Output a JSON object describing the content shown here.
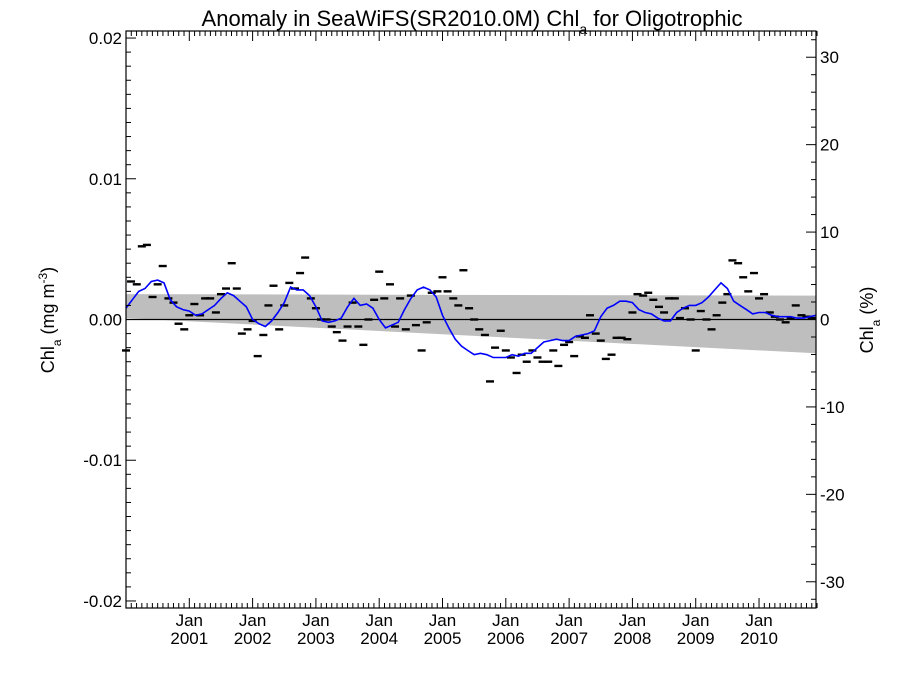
{
  "chart_data": {
    "type": "line",
    "title": "Anomaly in SeaWiFS(SR2010.0M) Chl",
    "title_subscript": "a",
    "title_suffix": " for Oligotrophic",
    "ylabel_left": {
      "pre": "Chl",
      "sub": "a",
      "mid": " (mg m",
      "sup": "-3",
      "post": ")"
    },
    "ylabel_right": {
      "pre": "Chl",
      "sub": "a",
      "post": " (%)"
    },
    "ylim": [
      -0.0205,
      0.0205
    ],
    "ylim_right": [
      -33.0,
      33.0
    ],
    "xlim": [
      2000.0,
      2010.9
    ],
    "left_ticks": [
      {
        "v": 0.02,
        "label": "0.02"
      },
      {
        "v": 0.01,
        "label": "0.01"
      },
      {
        "v": 0.0,
        "label": "0.00"
      },
      {
        "v": -0.01,
        "label": "-0.01"
      },
      {
        "v": -0.02,
        "label": "-0.02"
      }
    ],
    "right_ticks": [
      {
        "v": 30,
        "label": "30"
      },
      {
        "v": 20,
        "label": "20"
      },
      {
        "v": 10,
        "label": "10"
      },
      {
        "v": 0,
        "label": "0"
      },
      {
        "v": -10,
        "label": "-10"
      },
      {
        "v": -20,
        "label": "-20"
      },
      {
        "v": -30,
        "label": "-30"
      }
    ],
    "x_tick_labels": [
      {
        "t": 2001.0,
        "month": "Jan",
        "year": "2001"
      },
      {
        "t": 2002.0,
        "month": "Jan",
        "year": "2002"
      },
      {
        "t": 2003.0,
        "month": "Jan",
        "year": "2003"
      },
      {
        "t": 2004.0,
        "month": "Jan",
        "year": "2004"
      },
      {
        "t": 2005.0,
        "month": "Jan",
        "year": "2005"
      },
      {
        "t": 2006.0,
        "month": "Jan",
        "year": "2006"
      },
      {
        "t": 2007.0,
        "month": "Jan",
        "year": "2007"
      },
      {
        "t": 2008.0,
        "month": "Jan",
        "year": "2008"
      },
      {
        "t": 2009.0,
        "month": "Jan",
        "year": "2009"
      },
      {
        "t": 2010.0,
        "month": "Jan",
        "year": "2010"
      }
    ],
    "band": {
      "x": [
        2000.0,
        2010.9
      ],
      "upper": [
        0.0018,
        0.0017
      ],
      "lower": [
        0.0001,
        -0.0024
      ]
    },
    "zero_line": 0,
    "colors": {
      "band": "#bebebe",
      "smooth": "#0000ff",
      "points": "#000000",
      "axes": "#000000"
    },
    "series": [
      {
        "kind": "monthly_points",
        "x": [
          2000.0,
          2000.08,
          2000.17,
          2000.25,
          2000.33,
          2000.42,
          2000.5,
          2000.58,
          2000.67,
          2000.75,
          2000.83,
          2000.92,
          2001.0,
          2001.08,
          2001.17,
          2001.25,
          2001.33,
          2001.42,
          2001.5,
          2001.58,
          2001.67,
          2001.75,
          2001.83,
          2001.92,
          2002.0,
          2002.08,
          2002.17,
          2002.25,
          2002.33,
          2002.42,
          2002.5,
          2002.58,
          2002.67,
          2002.75,
          2002.83,
          2002.92,
          2003.0,
          2003.08,
          2003.17,
          2003.25,
          2003.33,
          2003.42,
          2003.5,
          2003.58,
          2003.67,
          2003.75,
          2003.83,
          2003.92,
          2004.0,
          2004.08,
          2004.17,
          2004.25,
          2004.33,
          2004.42,
          2004.5,
          2004.58,
          2004.67,
          2004.75,
          2004.83,
          2004.92,
          2005.0,
          2005.08,
          2005.17,
          2005.25,
          2005.33,
          2005.42,
          2005.5,
          2005.58,
          2005.67,
          2005.75,
          2005.83,
          2005.92,
          2006.0,
          2006.08,
          2006.17,
          2006.25,
          2006.33,
          2006.42,
          2006.5,
          2006.58,
          2006.67,
          2006.75,
          2006.83,
          2006.92,
          2007.0,
          2007.08,
          2007.17,
          2007.25,
          2007.33,
          2007.42,
          2007.5,
          2007.58,
          2007.67,
          2007.75,
          2007.83,
          2007.92,
          2008.0,
          2008.08,
          2008.17,
          2008.25,
          2008.33,
          2008.42,
          2008.5,
          2008.58,
          2008.67,
          2008.75,
          2008.83,
          2008.92,
          2009.0,
          2009.08,
          2009.17,
          2009.25,
          2009.33,
          2009.42,
          2009.5,
          2009.58,
          2009.67,
          2009.75,
          2009.83,
          2009.92,
          2010.0,
          2010.08,
          2010.17,
          2010.25,
          2010.33,
          2010.42,
          2010.5,
          2010.58,
          2010.67,
          2010.75,
          2010.83
        ],
        "values": [
          -0.0022,
          0.0027,
          0.0025,
          0.0052,
          0.0053,
          0.0016,
          0.0025,
          0.0038,
          0.0015,
          0.0012,
          -0.0003,
          -0.0007,
          0.0003,
          0.0011,
          0.0003,
          0.0015,
          0.0015,
          0.0005,
          0.0018,
          0.0022,
          0.004,
          0.0022,
          -0.001,
          -0.0007,
          -0.0001,
          -0.0026,
          -0.0011,
          0.001,
          0.0024,
          -0.0007,
          0.001,
          0.0026,
          0.0022,
          0.0033,
          0.0044,
          0.0015,
          0.0008,
          0.0,
          0.0,
          -0.0005,
          -0.0009,
          -0.0015,
          -0.0005,
          0.0012,
          -0.0005,
          -0.0018,
          0.0,
          0.0014,
          0.0034,
          0.0015,
          0.0025,
          -0.0005,
          0.0015,
          -0.0007,
          0.0017,
          -0.0004,
          -0.0022,
          -0.0002,
          0.0019,
          0.002,
          0.003,
          0.002,
          0.0015,
          0.001,
          0.0035,
          0.0008,
          0.0,
          -0.0007,
          -0.0011,
          -0.0044,
          -0.002,
          -0.0008,
          -0.0022,
          -0.0027,
          -0.0038,
          -0.0025,
          -0.003,
          -0.0022,
          -0.0027,
          -0.003,
          -0.003,
          -0.0022,
          -0.0033,
          -0.0018,
          -0.0016,
          -0.0026,
          -0.0012,
          -0.0013,
          0.0003,
          -0.001,
          -0.0015,
          -0.0028,
          -0.0025,
          -0.0013,
          -0.0013,
          -0.0014,
          0.0005,
          0.0018,
          0.0017,
          0.0019,
          0.0014,
          0.0009,
          0.0005,
          0.0015,
          0.0015,
          0.0001,
          0.0008,
          0.0,
          -0.0022,
          0.0006,
          0.0,
          -0.0007,
          0.0003,
          0.0012,
          0.0018,
          0.0042,
          0.004,
          0.003,
          0.002,
          0.0033,
          0.0015,
          0.0018,
          0.0005,
          0.0002,
          0.0,
          -0.0002,
          0.0001,
          0.001,
          0.0003,
          0.0002,
          0.0001
        ]
      },
      {
        "kind": "smoothed",
        "color": "#0000ff",
        "x": [
          2000.0,
          2000.1,
          2000.2,
          2000.3,
          2000.4,
          2000.5,
          2000.6,
          2000.7,
          2000.8,
          2000.9,
          2001.0,
          2001.1,
          2001.2,
          2001.3,
          2001.4,
          2001.5,
          2001.6,
          2001.7,
          2001.8,
          2001.9,
          2002.0,
          2002.1,
          2002.2,
          2002.3,
          2002.4,
          2002.5,
          2002.6,
          2002.7,
          2002.8,
          2002.9,
          2003.0,
          2003.1,
          2003.2,
          2003.3,
          2003.4,
          2003.5,
          2003.6,
          2003.7,
          2003.8,
          2003.9,
          2004.0,
          2004.1,
          2004.2,
          2004.3,
          2004.4,
          2004.5,
          2004.6,
          2004.7,
          2004.8,
          2004.9,
          2005.0,
          2005.1,
          2005.2,
          2005.3,
          2005.4,
          2005.5,
          2005.6,
          2005.7,
          2005.8,
          2005.9,
          2006.0,
          2006.1,
          2006.2,
          2006.3,
          2006.4,
          2006.5,
          2006.6,
          2006.7,
          2006.8,
          2006.9,
          2007.0,
          2007.1,
          2007.2,
          2007.3,
          2007.4,
          2007.5,
          2007.6,
          2007.7,
          2007.8,
          2007.9,
          2008.0,
          2008.1,
          2008.2,
          2008.3,
          2008.4,
          2008.5,
          2008.6,
          2008.7,
          2008.8,
          2008.9,
          2009.0,
          2009.1,
          2009.2,
          2009.3,
          2009.4,
          2009.5,
          2009.6,
          2009.7,
          2009.8,
          2009.9,
          2010.0,
          2010.1,
          2010.2,
          2010.3,
          2010.4,
          2010.5,
          2010.6,
          2010.7,
          2010.8,
          2010.9
        ],
        "values": [
          0.0008,
          0.0014,
          0.002,
          0.0022,
          0.0027,
          0.0028,
          0.0026,
          0.0014,
          0.0009,
          0.0007,
          0.0006,
          0.0003,
          0.0004,
          0.0007,
          0.001,
          0.0015,
          0.0019,
          0.0017,
          0.0013,
          0.0009,
          0.0,
          -0.0003,
          -0.0005,
          -0.0001,
          0.0005,
          0.0012,
          0.0023,
          0.0021,
          0.0021,
          0.0017,
          0.0009,
          -0.0001,
          -0.0002,
          -0.0001,
          0.0001,
          0.0009,
          0.0015,
          0.001,
          0.0011,
          0.0008,
          0.0,
          -0.0006,
          -0.0004,
          -0.0002,
          0.0007,
          0.0015,
          0.0021,
          0.0023,
          0.0021,
          0.0016,
          0.0003,
          -0.0006,
          -0.0014,
          -0.0019,
          -0.0022,
          -0.0025,
          -0.0024,
          -0.0025,
          -0.0027,
          -0.0027,
          -0.0027,
          -0.0025,
          -0.0026,
          -0.0024,
          -0.0024,
          -0.002,
          -0.0016,
          -0.0015,
          -0.0014,
          -0.0015,
          -0.0015,
          -0.0012,
          -0.0011,
          -0.001,
          -0.0008,
          0.0002,
          0.0008,
          0.001,
          0.0013,
          0.0013,
          0.0012,
          0.0007,
          0.0005,
          0.0004,
          0.0001,
          -0.0001,
          -0.0001,
          0.0005,
          0.0008,
          0.001,
          0.001,
          0.0012,
          0.0016,
          0.0021,
          0.0026,
          0.0022,
          0.0013,
          0.001,
          0.0007,
          0.0004,
          0.0005,
          0.0005,
          0.0003,
          0.0002,
          0.0002,
          0.0002,
          0.0001,
          0.0001,
          0.0002,
          0.0003
        ]
      }
    ]
  }
}
